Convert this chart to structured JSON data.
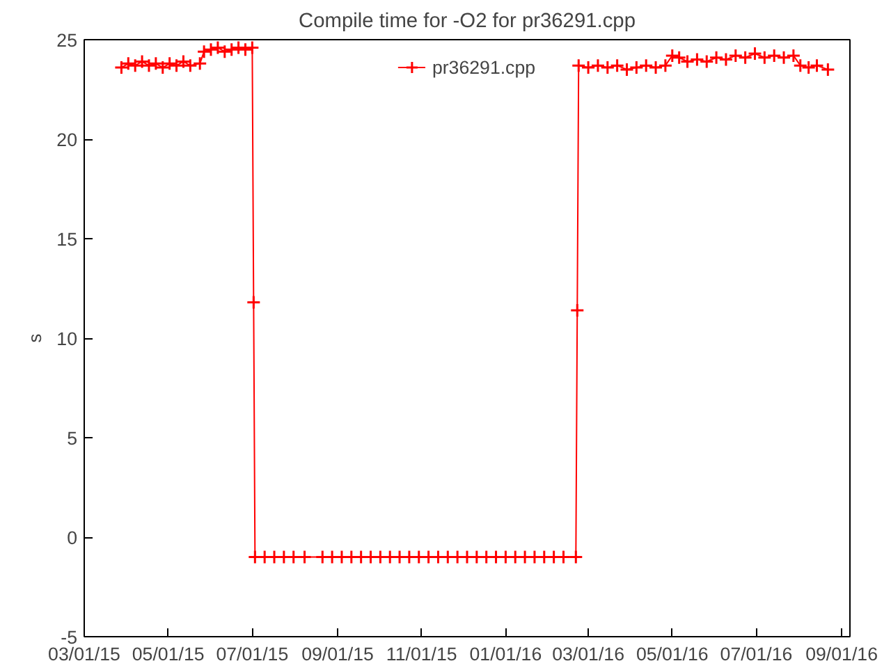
{
  "chart_data": {
    "type": "line",
    "title": "Compile time for -O2 for pr36291.cpp",
    "ylabel": "s",
    "legend": "top",
    "marker": "cross",
    "line_style": "solid",
    "grid": false,
    "xlim": [
      "2015-03-01",
      "2016-09-07"
    ],
    "ylim": [
      -5,
      25
    ],
    "xticks": [
      {
        "value": "2015-03-01",
        "label": "03/01/15"
      },
      {
        "value": "2015-05-01",
        "label": "05/01/15"
      },
      {
        "value": "2015-07-01",
        "label": "07/01/15"
      },
      {
        "value": "2015-09-01",
        "label": "09/01/15"
      },
      {
        "value": "2015-11-01",
        "label": "11/01/15"
      },
      {
        "value": "2016-01-01",
        "label": "01/01/16"
      },
      {
        "value": "2016-03-01",
        "label": "03/01/16"
      },
      {
        "value": "2016-05-01",
        "label": "05/01/16"
      },
      {
        "value": "2016-07-01",
        "label": "07/01/16"
      },
      {
        "value": "2016-09-01",
        "label": "09/01/16"
      }
    ],
    "yticks": [
      -5,
      0,
      5,
      10,
      15,
      20,
      25
    ],
    "series": [
      {
        "name": "pr36291.cpp",
        "color": "#ff0000",
        "x": [
          "2015-03-28",
          "2015-04-02",
          "2015-04-07",
          "2015-04-12",
          "2015-04-17",
          "2015-04-22",
          "2015-04-27",
          "2015-05-02",
          "2015-05-07",
          "2015-05-12",
          "2015-05-17",
          "2015-05-24",
          "2015-05-27",
          "2015-06-01",
          "2015-06-06",
          "2015-06-11",
          "2015-06-16",
          "2015-06-21",
          "2015-06-26",
          "2015-07-01",
          "2015-07-02",
          "2015-07-03",
          "2015-07-10",
          "2015-07-17",
          "2015-07-24",
          "2015-07-31",
          "2015-08-08",
          "2015-08-21",
          "2015-08-28",
          "2015-09-04",
          "2015-09-11",
          "2015-09-18",
          "2015-09-25",
          "2015-10-02",
          "2015-10-09",
          "2015-10-16",
          "2015-10-23",
          "2015-10-30",
          "2015-11-06",
          "2015-11-13",
          "2015-11-20",
          "2015-11-27",
          "2015-12-04",
          "2015-12-11",
          "2015-12-18",
          "2015-12-25",
          "2016-01-01",
          "2016-01-08",
          "2016-01-15",
          "2016-01-22",
          "2016-01-29",
          "2016-02-05",
          "2016-02-12",
          "2016-02-21",
          "2016-02-22",
          "2016-02-23",
          "2016-03-01",
          "2016-03-08",
          "2016-03-15",
          "2016-03-22",
          "2016-03-29",
          "2016-04-05",
          "2016-04-12",
          "2016-04-19",
          "2016-04-26",
          "2016-05-01",
          "2016-05-06",
          "2016-05-12",
          "2016-05-19",
          "2016-05-26",
          "2016-06-02",
          "2016-06-09",
          "2016-06-16",
          "2016-06-23",
          "2016-06-30",
          "2016-07-07",
          "2016-07-14",
          "2016-07-21",
          "2016-07-28",
          "2016-08-02",
          "2016-08-08",
          "2016-08-14",
          "2016-08-22"
        ],
        "values": [
          23.6,
          23.8,
          23.7,
          23.9,
          23.7,
          23.8,
          23.6,
          23.8,
          23.7,
          23.9,
          23.7,
          23.8,
          24.4,
          24.5,
          24.6,
          24.4,
          24.5,
          24.6,
          24.5,
          24.6,
          11.8,
          -1,
          -1,
          -1,
          -1,
          -1,
          -1,
          -1,
          -1,
          -1,
          -1,
          -1,
          -1,
          -1,
          -1,
          -1,
          -1,
          -1,
          -1,
          -1,
          -1,
          -1,
          -1,
          -1,
          -1,
          -1,
          -1,
          -1,
          -1,
          -1,
          -1,
          -1,
          -1,
          -1,
          11.4,
          23.7,
          23.6,
          23.7,
          23.6,
          23.7,
          23.5,
          23.6,
          23.7,
          23.6,
          23.7,
          24.2,
          24.1,
          23.9,
          24.0,
          23.9,
          24.1,
          24.0,
          24.2,
          24.1,
          24.3,
          24.1,
          24.2,
          24.1,
          24.2,
          23.7,
          23.6,
          23.7,
          23.5
        ]
      }
    ]
  }
}
